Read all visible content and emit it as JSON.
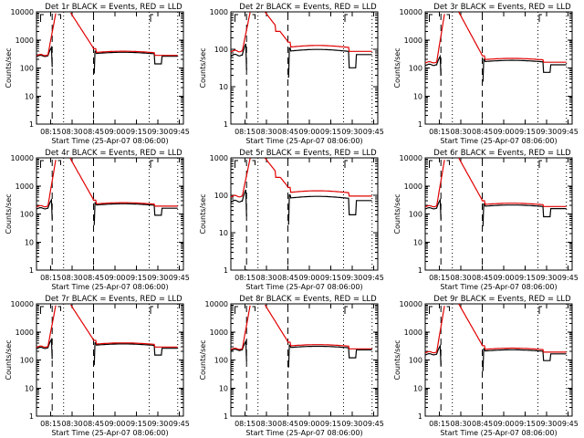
{
  "chart_data": {
    "type": "line",
    "layout": "3x3 grid of log-scale time series",
    "shared": {
      "xlabel": "Start Time (25-Apr-07 08:06:00)",
      "ylabel": "Counts/sec",
      "xtick_labels": [
        "08:15",
        "08:30",
        "08:45",
        "09:00",
        "09:15",
        "09:30",
        "09:45"
      ],
      "xtick_minutes": [
        15,
        30,
        45,
        60,
        75,
        90,
        105
      ],
      "xlim_minutes": [
        5,
        108
      ],
      "yscale": "log",
      "ylim": [
        1,
        10000
      ],
      "ytick_labels": [
        "1",
        "10",
        "100",
        "1000",
        "10000"
      ],
      "ytick_values": [
        1,
        10,
        100,
        1000,
        10000
      ],
      "legend": "in title",
      "colors": {
        "events": "#000000",
        "lld": "#e00000"
      },
      "dashed_markers_minutes": [
        16,
        45
      ],
      "dotted_markers_minutes": [
        24,
        84,
        104
      ],
      "bracket_annotations": [
        "[ (near 08:10)",
        "] (near 08:22)",
        "[ (near 09:27)"
      ]
    },
    "panels": [
      {
        "title": "Det 1r BLACK = Events, RED = LLD",
        "base_events": 270,
        "base_lld": 290,
        "post_events": 330,
        "post_lld": 360,
        "dip": 140,
        "end_events": 260,
        "end_lld": 280
      },
      {
        "title": "Det 2r BLACK = Events, RED = LLD",
        "base_events": 70,
        "base_lld": 90,
        "post_events": 90,
        "post_lld": 115,
        "dip": 32,
        "end_events": 72,
        "end_lld": 88,
        "ylim": [
          1,
          1000
        ],
        "ytick_labels": [
          "1",
          "10",
          "100",
          "1000"
        ]
      },
      {
        "title": "Det 3r BLACK = Events, RED = LLD",
        "base_events": 130,
        "base_lld": 160,
        "post_events": 170,
        "post_lld": 200,
        "dip": 70,
        "end_events": 130,
        "end_lld": 160
      },
      {
        "title": "Det 4r BLACK = Events, RED = LLD",
        "base_events": 160,
        "base_lld": 190,
        "post_events": 210,
        "post_lld": 230,
        "dip": 90,
        "end_events": 160,
        "end_lld": 190
      },
      {
        "title": "Det 5r BLACK = Events, RED = LLD",
        "base_events": 70,
        "base_lld": 95,
        "post_events": 85,
        "post_lld": 120,
        "dip": 30,
        "end_events": 72,
        "end_lld": 95,
        "ylim": [
          1,
          1000
        ],
        "ytick_labels": [
          "1",
          "10",
          "100",
          "1000"
        ]
      },
      {
        "title": "Det 6r BLACK = Events, RED = LLD",
        "base_events": 160,
        "base_lld": 190,
        "post_events": 190,
        "post_lld": 220,
        "dip": 80,
        "end_events": 155,
        "end_lld": 185
      },
      {
        "title": "Det 7r BLACK = Events, RED = LLD",
        "base_events": 270,
        "base_lld": 300,
        "post_events": 340,
        "post_lld": 370,
        "dip": 150,
        "end_events": 260,
        "end_lld": 290
      },
      {
        "title": "Det 8r BLACK = Events, RED = LLD",
        "base_events": 230,
        "base_lld": 250,
        "post_events": 280,
        "post_lld": 320,
        "dip": 120,
        "end_events": 230,
        "end_lld": 250
      },
      {
        "title": "Det 9r BLACK = Events, RED = LLD",
        "base_events": 160,
        "base_lld": 190,
        "post_events": 210,
        "post_lld": 240,
        "dip": 95,
        "end_events": 165,
        "end_lld": 190
      }
    ]
  }
}
